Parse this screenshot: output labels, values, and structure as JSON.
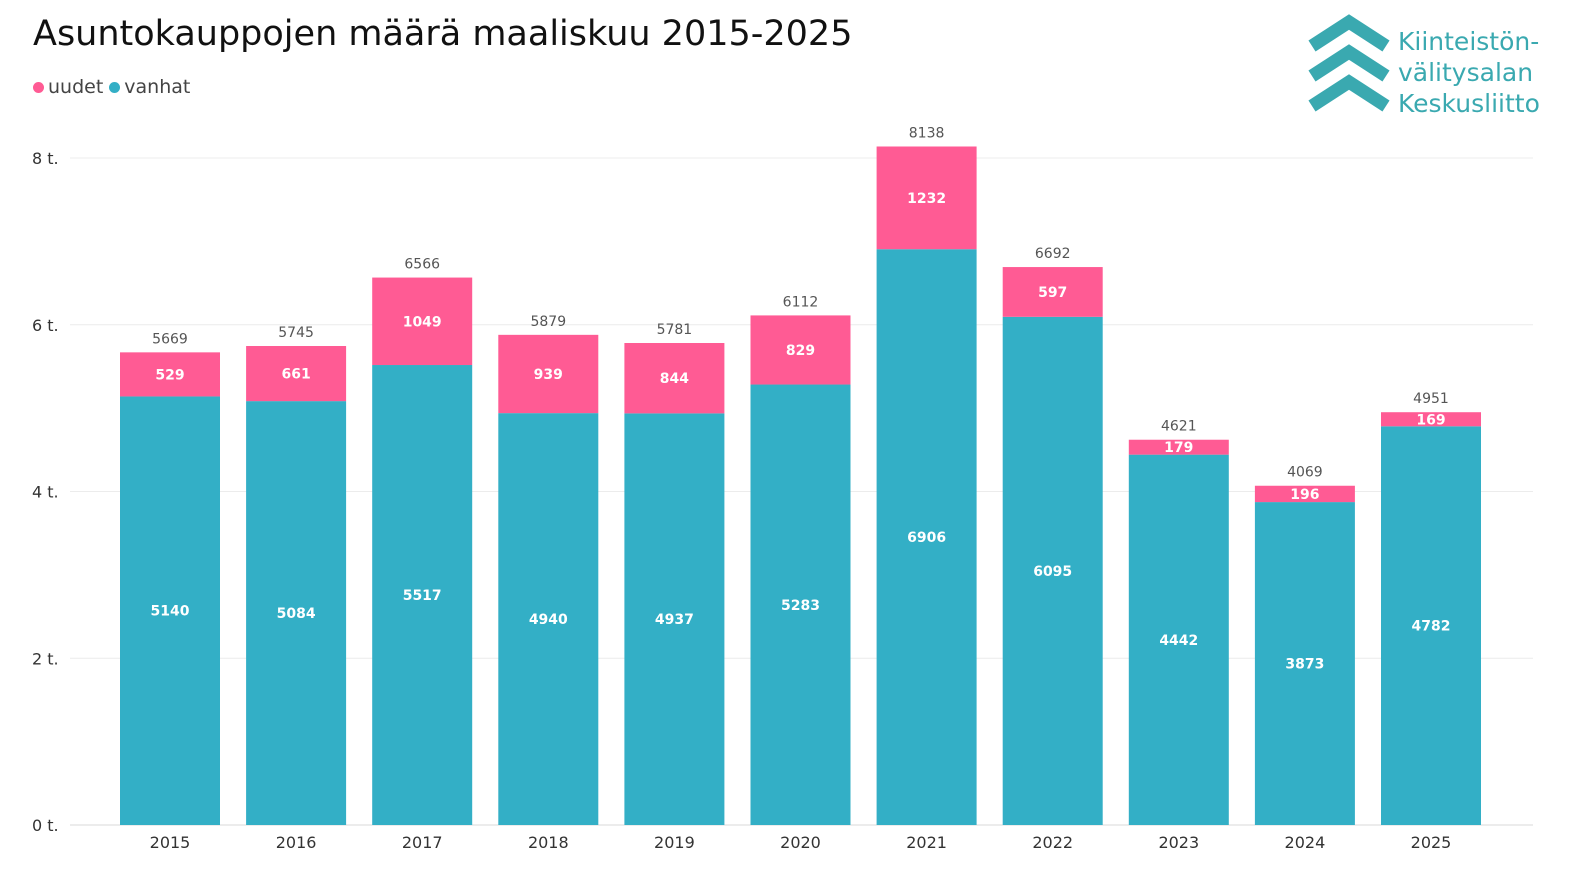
{
  "title": "Asuntokauppojen määrä maaliskuu 2015-2025",
  "legend": [
    {
      "label": "uudet",
      "color": "#ff5b94"
    },
    {
      "label": "vanhat",
      "color": "#33afc6"
    }
  ],
  "logo": {
    "lines": [
      "Kiinteistön-",
      "välitysalan",
      "Keskusliitto"
    ],
    "color": "#3aa9b0",
    "icon": "chevron-stack-icon"
  },
  "chart_data": {
    "type": "bar",
    "stacked": true,
    "title": "Asuntokauppojen määrä maaliskuu 2015-2025",
    "categories": [
      "2015",
      "2016",
      "2017",
      "2018",
      "2019",
      "2020",
      "2021",
      "2022",
      "2023",
      "2024",
      "2025"
    ],
    "series": [
      {
        "name": "vanhat",
        "color": "#33afc6",
        "values": [
          5140,
          5084,
          5517,
          4940,
          4937,
          5283,
          6906,
          6095,
          4442,
          3873,
          4782
        ]
      },
      {
        "name": "uudet",
        "color": "#ff5b94",
        "values": [
          529,
          661,
          1049,
          939,
          844,
          829,
          1232,
          597,
          179,
          196,
          169
        ]
      }
    ],
    "totals": [
      5669,
      5745,
      6566,
      5879,
      5781,
      6112,
      8138,
      6692,
      4621,
      4069,
      4951
    ],
    "ylim": [
      0,
      8000
    ],
    "yticks": [
      {
        "value": 0,
        "label": "0 t."
      },
      {
        "value": 2000,
        "label": "2 t."
      },
      {
        "value": 4000,
        "label": "4 t."
      },
      {
        "value": 6000,
        "label": "6 t."
      },
      {
        "value": 8000,
        "label": "8 t."
      }
    ],
    "grid": true,
    "legend_position": "top-left"
  }
}
